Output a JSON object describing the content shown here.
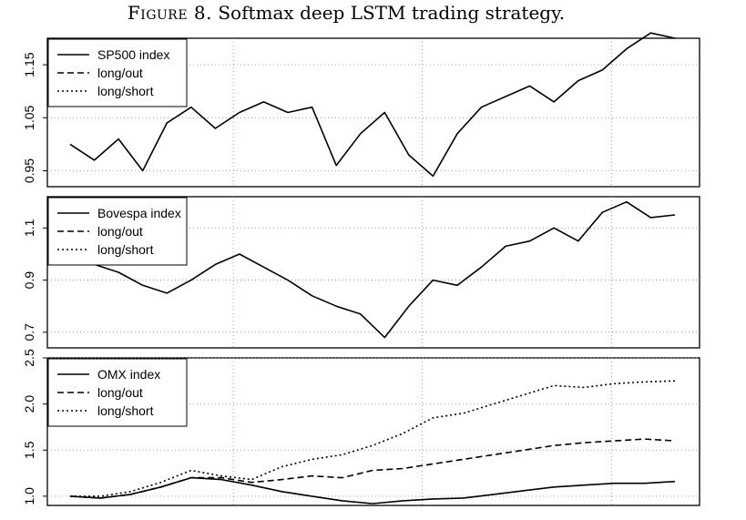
{
  "title": {
    "label": "Figure 8.",
    "text": "Softmax deep LSTM trading strategy."
  },
  "chart_data": [
    {
      "type": "line",
      "ylim": [
        0.92,
        1.2
      ],
      "yticks": [
        "0.95",
        "1.05",
        "1.15"
      ],
      "yticks_values": [
        0.95,
        1.05,
        1.15
      ],
      "legend": {
        "position": "top-left",
        "entries": [
          "SP500 index",
          "long/out",
          "long/short"
        ]
      },
      "grid": true,
      "series": [
        {
          "name": "SP500 index",
          "style": "solid",
          "x": [
            0,
            4,
            8,
            12,
            16,
            20,
            24,
            28,
            32,
            36,
            40,
            44,
            48,
            52,
            56,
            60,
            64,
            68,
            72,
            76,
            80,
            84,
            88,
            92,
            96,
            100
          ],
          "values": [
            1.0,
            0.97,
            1.01,
            0.95,
            1.04,
            1.07,
            1.03,
            1.06,
            1.08,
            1.06,
            1.07,
            0.96,
            1.02,
            1.06,
            0.98,
            0.94,
            1.02,
            1.07,
            1.09,
            1.11,
            1.08,
            1.12,
            1.14,
            1.18,
            1.21,
            1.2
          ]
        }
      ]
    },
    {
      "type": "line",
      "ylim": [
        0.64,
        1.22
      ],
      "yticks": [
        "0.7",
        "0.9",
        "1.1"
      ],
      "yticks_values": [
        0.7,
        0.9,
        1.1
      ],
      "legend": {
        "position": "top-left",
        "entries": [
          "Bovespa index",
          "long/out",
          "long/short"
        ]
      },
      "grid": true,
      "series": [
        {
          "name": "Bovespa index",
          "style": "solid",
          "x": [
            0,
            4,
            8,
            12,
            16,
            20,
            24,
            28,
            32,
            36,
            40,
            44,
            48,
            52,
            56,
            60,
            64,
            68,
            72,
            76,
            80,
            84,
            88,
            92,
            96,
            100
          ],
          "values": [
            1.0,
            0.96,
            0.93,
            0.88,
            0.85,
            0.9,
            0.96,
            1.0,
            0.95,
            0.9,
            0.84,
            0.8,
            0.77,
            0.68,
            0.8,
            0.9,
            0.88,
            0.95,
            1.03,
            1.05,
            1.1,
            1.05,
            1.16,
            1.2,
            1.14,
            1.15
          ]
        }
      ]
    },
    {
      "type": "line",
      "ylim": [
        0.9,
        2.5
      ],
      "yticks": [
        "1.0",
        "1.5",
        "2.0",
        "2.5"
      ],
      "yticks_values": [
        1.0,
        1.5,
        2.0,
        2.5
      ],
      "legend": {
        "position": "top-left",
        "entries": [
          "OMX index",
          "long/out",
          "long/short"
        ]
      },
      "grid": true,
      "series": [
        {
          "name": "OMX index",
          "style": "solid",
          "x": [
            0,
            5,
            10,
            15,
            20,
            25,
            30,
            35,
            40,
            45,
            50,
            55,
            60,
            65,
            70,
            75,
            80,
            85,
            90,
            95,
            100
          ],
          "values": [
            1.0,
            0.98,
            1.02,
            1.1,
            1.2,
            1.18,
            1.12,
            1.05,
            1.0,
            0.95,
            0.92,
            0.95,
            0.97,
            0.98,
            1.02,
            1.06,
            1.1,
            1.12,
            1.14,
            1.14,
            1.16
          ]
        },
        {
          "name": "long/out",
          "style": "dashed",
          "x": [
            0,
            5,
            10,
            15,
            20,
            25,
            30,
            35,
            40,
            45,
            50,
            55,
            60,
            65,
            70,
            75,
            80,
            85,
            90,
            95,
            100
          ],
          "values": [
            1.0,
            0.98,
            1.02,
            1.1,
            1.2,
            1.2,
            1.15,
            1.18,
            1.22,
            1.2,
            1.28,
            1.3,
            1.35,
            1.4,
            1.45,
            1.5,
            1.55,
            1.58,
            1.6,
            1.62,
            1.6
          ]
        },
        {
          "name": "long/short",
          "style": "dotted",
          "x": [
            0,
            5,
            10,
            15,
            20,
            25,
            30,
            35,
            40,
            45,
            50,
            55,
            60,
            65,
            70,
            75,
            80,
            85,
            90,
            95,
            100
          ],
          "values": [
            1.0,
            1.0,
            1.05,
            1.15,
            1.28,
            1.22,
            1.18,
            1.32,
            1.4,
            1.45,
            1.55,
            1.68,
            1.85,
            1.9,
            2.0,
            2.1,
            2.2,
            2.18,
            2.22,
            2.24,
            2.25
          ]
        }
      ]
    }
  ]
}
